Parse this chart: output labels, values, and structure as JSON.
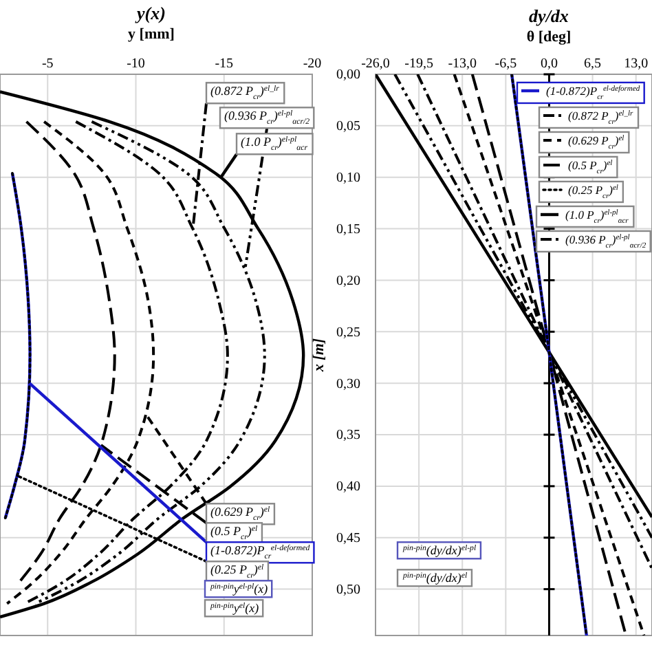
{
  "chart_data": [
    {
      "type": "line",
      "title": "y(x)",
      "xlabel": "y [mm]",
      "xlim": [
        -2.3,
        -20
      ],
      "ylim": [
        0.545,
        0
      ],
      "xticks": [
        -5,
        -10,
        -15,
        -20
      ],
      "yticks": [
        0.05,
        0.1,
        0.15,
        0.2,
        0.25,
        0.3,
        0.35,
        0.4,
        0.45,
        0.5
      ],
      "tick_labels": "x",
      "grid": true,
      "series": [
        {
          "name": "(1.0 P$_{cr}$)$^{el-pl}$$_{αcr}$",
          "color": "#000000",
          "line_style": "solid",
          "x": [
            -2.3,
            -8.5,
            -14.5,
            -16.9,
            -18.9,
            -19.5,
            -17.9,
            -15.3,
            -12.7,
            -10.1,
            -7.5,
            -4.8,
            -2.3
          ],
          "values": [
            0.017,
            0.046,
            0.096,
            0.149,
            0.22,
            0.273,
            0.356,
            0.401,
            0.431,
            0.466,
            0.493,
            0.514,
            0.527
          ]
        },
        {
          "name": "(0.936 P$_{cr}$)$^{el-pl}$$_{αcr/2}$",
          "color": "#000000",
          "line_style": "dashed",
          "x": [
            -7.5,
            -12.9,
            -15.0,
            -16.8,
            -17.3,
            -15.9,
            -13.6,
            -11.3,
            -9.0,
            -6.7,
            -4.3
          ],
          "values": [
            0.046,
            0.096,
            0.149,
            0.22,
            0.273,
            0.356,
            0.401,
            0.431,
            0.466,
            0.493,
            0.514
          ]
        },
        {
          "name": "(0.872 P$_{cr}$)$^{el_lr}$",
          "color": "#000000",
          "line_style": "dashed",
          "x": [
            -6.6,
            -11.3,
            -13.2,
            -14.7,
            -15.2,
            -14.0,
            -11.9,
            -9.9,
            -7.9,
            -5.9,
            -3.7
          ],
          "values": [
            0.046,
            0.096,
            0.149,
            0.22,
            0.273,
            0.356,
            0.401,
            0.431,
            0.466,
            0.493,
            0.514
          ]
        },
        {
          "name": "(0.629 P$_{cr}$)$^{el}$",
          "color": "#000000",
          "line_style": "dashed",
          "x": [
            -4.8,
            -8.2,
            -9.5,
            -10.7,
            -11.0,
            -10.1,
            -8.6,
            -7.2,
            -5.7,
            -4.2,
            -2.7
          ],
          "values": [
            0.046,
            0.096,
            0.149,
            0.22,
            0.273,
            0.356,
            0.401,
            0.431,
            0.466,
            0.493,
            0.514
          ]
        },
        {
          "name": "(0.5 P$_{cr}$)$^{el}$",
          "color": "#000000",
          "line_style": "dashed",
          "x": [
            -3.8,
            -6.5,
            -7.6,
            -8.5,
            -8.8,
            -8.1,
            -6.9,
            -5.7,
            -4.6,
            -3.4
          ],
          "values": [
            0.046,
            0.096,
            0.149,
            0.22,
            0.273,
            0.356,
            0.401,
            0.431,
            0.466,
            0.493
          ]
        },
        {
          "name": "(1-0.872)P$_{cr}$$^{el-deformed}$",
          "color": "#1a1acc",
          "line_style": "solid",
          "x": [
            -3.0,
            -3.5,
            -3.9,
            -4.0,
            -3.7,
            -3.1,
            -2.6
          ],
          "values": [
            0.096,
            0.149,
            0.22,
            0.273,
            0.356,
            0.401,
            0.431
          ]
        },
        {
          "name": "(0.25 P$_{cr}$)$^{el}$",
          "color": "#000000",
          "line_style": "dotted",
          "x": [
            -3.0,
            -3.5,
            -3.9,
            -4.0,
            -3.7,
            -3.1,
            -2.6
          ],
          "values": [
            0.096,
            0.149,
            0.22,
            0.273,
            0.356,
            0.401,
            0.431
          ]
        }
      ],
      "annotations": [
        "$^{pin-pin}$y$^{el}$(x)",
        "$^{pin-pin}$y$^{el-pl}$(x)"
      ]
    },
    {
      "type": "line",
      "title": "dy/dx",
      "xlabel": "θ [deg]",
      "ylabel": "x [m]",
      "xlim": [
        -26,
        15.4
      ],
      "ylim": [
        0.545,
        0
      ],
      "xticks": [
        {
          "value": -26,
          "label": "-26,0"
        },
        {
          "value": -19.5,
          "label": "-19,5"
        },
        {
          "value": -13,
          "label": "-13,0"
        },
        {
          "value": -6.5,
          "label": "-6,5"
        },
        {
          "value": 0,
          "label": "0,0"
        },
        {
          "value": 6.5,
          "label": "6,5"
        },
        {
          "value": 13,
          "label": "13,0"
        }
      ],
      "yticks": [
        {
          "value": 0,
          "label": "0,00"
        },
        {
          "value": 0.05,
          "label": "0,05"
        },
        {
          "value": 0.1,
          "label": "0,10"
        },
        {
          "value": 0.15,
          "label": "0,15"
        },
        {
          "value": 0.2,
          "label": "0,20"
        },
        {
          "value": 0.25,
          "label": "0,25"
        },
        {
          "value": 0.3,
          "label": "0,30"
        },
        {
          "value": 0.35,
          "label": "0,35"
        },
        {
          "value": 0.4,
          "label": "0,40"
        },
        {
          "value": 0.45,
          "label": "0,45"
        },
        {
          "value": 0.5,
          "label": "0,50"
        }
      ],
      "grid": true,
      "series": [
        {
          "name": "(1.0 P$_{cr}$)$^{el-pl}$$_{αcr}$",
          "color": "#000000",
          "line_style": "solid",
          "x": [
            -26.0,
            0,
            15.4
          ],
          "values": [
            0,
            0.27,
            0.43
          ]
        },
        {
          "name": "(0.936 P$_{cr}$)$^{el-pl}$$_{αcr/2}$",
          "color": "#000000",
          "line_style": "dashed",
          "x": [
            -23.1,
            0,
            15.4
          ],
          "values": [
            0,
            0.27,
            0.45
          ]
        },
        {
          "name": "(0.872 P$_{cr}$)$^{el_lr}$",
          "color": "#000000",
          "line_style": "dashed",
          "x": [
            -19.7,
            0,
            15.4
          ],
          "values": [
            0,
            0.27,
            0.48
          ]
        },
        {
          "name": "(0.629 P$_{cr}$)$^{el}$",
          "color": "#000000",
          "line_style": "dashed",
          "x": [
            -14.2,
            0,
            14.2
          ],
          "values": [
            0,
            0.27,
            0.545
          ]
        },
        {
          "name": "(0.5 P$_{cr}$)$^{el}$",
          "color": "#000000",
          "line_style": "dashed",
          "x": [
            -11.5,
            0,
            11.5
          ],
          "values": [
            0,
            0.27,
            0.545
          ]
        },
        {
          "name": "(1-0.872)P$_{cr}$$^{el-deformed}$",
          "color": "#1a1acc",
          "line_style": "solid",
          "x": [
            -5.6,
            0,
            5.6
          ],
          "values": [
            0,
            0.27,
            0.545
          ]
        },
        {
          "name": "(0.25 P$_{cr}$)$^{el}$",
          "color": "#000000",
          "line_style": "dotted",
          "x": [
            -5.6,
            0,
            5.6
          ],
          "values": [
            0,
            0.27,
            0.545
          ]
        }
      ],
      "annotations": [
        "$^{pin-pin}$(dy/dx)$^{el-pl}$",
        "$^{pin-pin}$(dy/dx)$^{el}$"
      ],
      "legend": "top right"
    }
  ]
}
